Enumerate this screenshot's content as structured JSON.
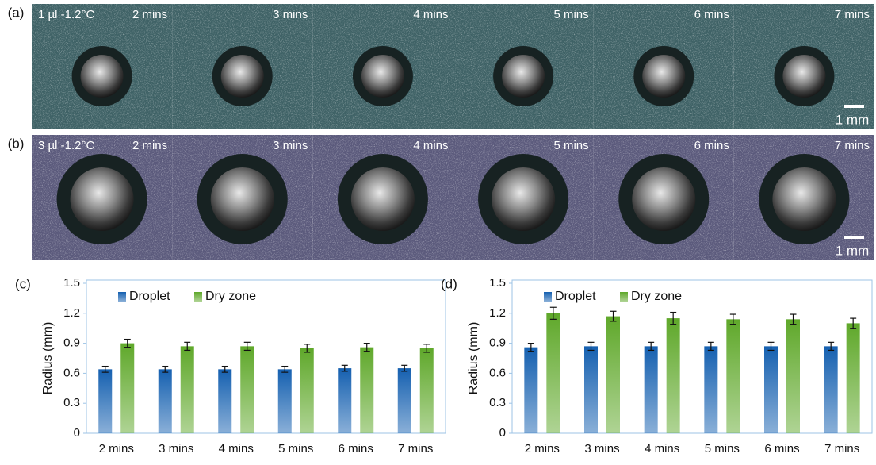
{
  "image_rows": [
    {
      "label": "(a)",
      "condition": "1 µl  -1.2°C",
      "frames": [
        "2 mins",
        "3 mins",
        "4 mins",
        "5 mins",
        "6 mins",
        "7 mins"
      ],
      "scale_bar": "1 mm"
    },
    {
      "label": "(b)",
      "condition": "3 µl  -1.2°C",
      "frames": [
        "2 mins",
        "3 mins",
        "4 mins",
        "5 mins",
        "6 mins",
        "7 mins"
      ],
      "scale_bar": "1 mm"
    }
  ],
  "chart_data": [
    {
      "type": "bar",
      "panel_label": "(c)",
      "y_label": "Radius (mm)",
      "categories": [
        "2 mins",
        "3 mins",
        "4 mins",
        "5 mins",
        "6 mins",
        "7 mins"
      ],
      "series": [
        {
          "name": "Droplet",
          "color": "#1560b0",
          "values": [
            0.64,
            0.64,
            0.64,
            0.64,
            0.65,
            0.65
          ],
          "errors": [
            0.03,
            0.03,
            0.03,
            0.03,
            0.03,
            0.03
          ]
        },
        {
          "name": "Dry zone",
          "color": "#5fa82a",
          "values": [
            0.9,
            0.87,
            0.87,
            0.85,
            0.86,
            0.85
          ],
          "errors": [
            0.04,
            0.04,
            0.04,
            0.04,
            0.04,
            0.04
          ]
        }
      ],
      "ylim": [
        0,
        1.5
      ],
      "yticks": [
        0,
        0.3,
        0.6,
        0.9,
        1.2,
        1.5
      ],
      "legend": "upper left"
    },
    {
      "type": "bar",
      "panel_label": "(d)",
      "y_label": "Radius (mm)",
      "categories": [
        "2 mins",
        "3 mins",
        "4 mins",
        "5 mins",
        "6 mins",
        "7 mins"
      ],
      "series": [
        {
          "name": "Droplet",
          "color": "#1560b0",
          "values": [
            0.86,
            0.87,
            0.87,
            0.87,
            0.87,
            0.87
          ],
          "errors": [
            0.04,
            0.04,
            0.04,
            0.04,
            0.04,
            0.04
          ]
        },
        {
          "name": "Dry zone",
          "color": "#5fa82a",
          "values": [
            1.2,
            1.17,
            1.15,
            1.14,
            1.14,
            1.1
          ],
          "errors": [
            0.06,
            0.05,
            0.06,
            0.05,
            0.05,
            0.05
          ]
        }
      ],
      "ylim": [
        0,
        1.5
      ],
      "yticks": [
        0,
        0.3,
        0.6,
        0.9,
        1.2,
        1.5
      ],
      "legend": "upper left"
    }
  ]
}
